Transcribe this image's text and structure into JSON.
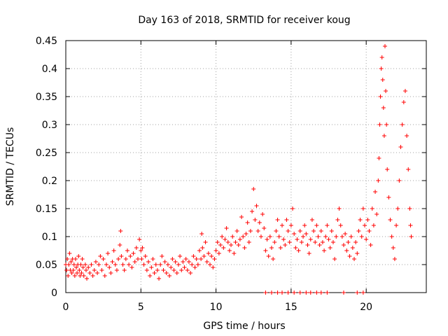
{
  "chart_data": {
    "type": "scatter",
    "title": "Day 163 of 2018, SRMTID for receiver koug",
    "xlabel": "GPS time / hours",
    "ylabel": "SRMTID / TECUs",
    "xlim": [
      0,
      24
    ],
    "ylim": [
      0,
      0.45
    ],
    "grid": true,
    "x_ticks": [
      0,
      5,
      10,
      15,
      20
    ],
    "x_tick_labels": [
      "0",
      "5",
      "10",
      "15",
      "20"
    ],
    "y_ticks": [
      0,
      0.05,
      0.1,
      0.15,
      0.2,
      0.25,
      0.3,
      0.35,
      0.4,
      0.45
    ],
    "y_tick_labels": [
      "0",
      "0.05",
      "0.1",
      "0.15",
      "0.2",
      "0.25",
      "0.3",
      "0.35",
      "0.4",
      "0.45"
    ],
    "marker": "+",
    "series": [
      {
        "name": "SRMTID",
        "color": "#ff0000",
        "points": [
          [
            0.0,
            0.05
          ],
          [
            0.05,
            0.04
          ],
          [
            0.1,
            0.06
          ],
          [
            0.15,
            0.03
          ],
          [
            0.2,
            0.05
          ],
          [
            0.25,
            0.07
          ],
          [
            0.3,
            0.04
          ],
          [
            0.35,
            0.055
          ],
          [
            0.4,
            0.035
          ],
          [
            0.45,
            0.06
          ],
          [
            0.5,
            0.04
          ],
          [
            0.55,
            0.05
          ],
          [
            0.6,
            0.03
          ],
          [
            0.65,
            0.06
          ],
          [
            0.7,
            0.045
          ],
          [
            0.75,
            0.035
          ],
          [
            0.8,
            0.05
          ],
          [
            0.85,
            0.065
          ],
          [
            0.9,
            0.04
          ],
          [
            0.95,
            0.03
          ],
          [
            1.0,
            0.05
          ],
          [
            1.05,
            0.035
          ],
          [
            1.1,
            0.06
          ],
          [
            1.15,
            0.045
          ],
          [
            1.2,
            0.03
          ],
          [
            1.3,
            0.05
          ],
          [
            1.35,
            0.04
          ],
          [
            1.4,
            0.025
          ],
          [
            1.5,
            0.045
          ],
          [
            1.6,
            0.035
          ],
          [
            1.7,
            0.05
          ],
          [
            1.8,
            0.03
          ],
          [
            1.9,
            0.04
          ],
          [
            2.0,
            0.055
          ],
          [
            2.1,
            0.035
          ],
          [
            2.2,
            0.05
          ],
          [
            2.3,
            0.065
          ],
          [
            2.4,
            0.04
          ],
          [
            2.5,
            0.06
          ],
          [
            2.6,
            0.03
          ],
          [
            2.7,
            0.05
          ],
          [
            2.8,
            0.07
          ],
          [
            2.9,
            0.045
          ],
          [
            3.0,
            0.035
          ],
          [
            3.1,
            0.055
          ],
          [
            3.2,
            0.075
          ],
          [
            3.3,
            0.05
          ],
          [
            3.4,
            0.04
          ],
          [
            3.5,
            0.06
          ],
          [
            3.6,
            0.085
          ],
          [
            3.65,
            0.11
          ],
          [
            3.7,
            0.065
          ],
          [
            3.8,
            0.05
          ],
          [
            3.9,
            0.04
          ],
          [
            4.0,
            0.06
          ],
          [
            4.1,
            0.075
          ],
          [
            4.2,
            0.05
          ],
          [
            4.3,
            0.065
          ],
          [
            4.4,
            0.045
          ],
          [
            4.5,
            0.07
          ],
          [
            4.6,
            0.055
          ],
          [
            4.7,
            0.08
          ],
          [
            4.8,
            0.06
          ],
          [
            4.9,
            0.095
          ],
          [
            5.0,
            0.075
          ],
          [
            5.05,
            0.06
          ],
          [
            5.1,
            0.08
          ],
          [
            5.2,
            0.05
          ],
          [
            5.3,
            0.065
          ],
          [
            5.4,
            0.04
          ],
          [
            5.5,
            0.055
          ],
          [
            5.6,
            0.03
          ],
          [
            5.7,
            0.045
          ],
          [
            5.8,
            0.06
          ],
          [
            5.9,
            0.035
          ],
          [
            6.0,
            0.05
          ],
          [
            6.1,
            0.04
          ],
          [
            6.2,
            0.025
          ],
          [
            6.3,
            0.05
          ],
          [
            6.4,
            0.065
          ],
          [
            6.5,
            0.04
          ],
          [
            6.6,
            0.055
          ],
          [
            6.7,
            0.035
          ],
          [
            6.8,
            0.05
          ],
          [
            6.9,
            0.03
          ],
          [
            7.0,
            0.045
          ],
          [
            7.1,
            0.06
          ],
          [
            7.2,
            0.04
          ],
          [
            7.3,
            0.055
          ],
          [
            7.4,
            0.035
          ],
          [
            7.5,
            0.05
          ],
          [
            7.6,
            0.065
          ],
          [
            7.7,
            0.04
          ],
          [
            7.8,
            0.055
          ],
          [
            7.9,
            0.045
          ],
          [
            8.0,
            0.06
          ],
          [
            8.1,
            0.04
          ],
          [
            8.2,
            0.055
          ],
          [
            8.3,
            0.035
          ],
          [
            8.4,
            0.05
          ],
          [
            8.5,
            0.065
          ],
          [
            8.6,
            0.045
          ],
          [
            8.7,
            0.06
          ],
          [
            8.8,
            0.05
          ],
          [
            8.9,
            0.075
          ],
          [
            9.0,
            0.06
          ],
          [
            9.05,
            0.105
          ],
          [
            9.1,
            0.08
          ],
          [
            9.2,
            0.065
          ],
          [
            9.3,
            0.09
          ],
          [
            9.4,
            0.055
          ],
          [
            9.5,
            0.07
          ],
          [
            9.6,
            0.05
          ],
          [
            9.7,
            0.065
          ],
          [
            9.8,
            0.045
          ],
          [
            9.9,
            0.06
          ],
          [
            10.0,
            0.075
          ],
          [
            10.1,
            0.09
          ],
          [
            10.2,
            0.07
          ],
          [
            10.3,
            0.085
          ],
          [
            10.4,
            0.1
          ],
          [
            10.5,
            0.08
          ],
          [
            10.6,
            0.095
          ],
          [
            10.7,
            0.115
          ],
          [
            10.8,
            0.09
          ],
          [
            10.9,
            0.075
          ],
          [
            11.0,
            0.085
          ],
          [
            11.1,
            0.1
          ],
          [
            11.2,
            0.07
          ],
          [
            11.3,
            0.09
          ],
          [
            11.4,
            0.11
          ],
          [
            11.5,
            0.085
          ],
          [
            11.6,
            0.095
          ],
          [
            11.7,
            0.135
          ],
          [
            11.8,
            0.1
          ],
          [
            11.9,
            0.08
          ],
          [
            12.0,
            0.105
          ],
          [
            12.1,
            0.125
          ],
          [
            12.2,
            0.09
          ],
          [
            12.3,
            0.11
          ],
          [
            12.4,
            0.145
          ],
          [
            12.5,
            0.185
          ],
          [
            12.6,
            0.13
          ],
          [
            12.7,
            0.155
          ],
          [
            12.8,
            0.11
          ],
          [
            12.9,
            0.125
          ],
          [
            13.0,
            0.1
          ],
          [
            13.1,
            0.14
          ],
          [
            13.2,
            0.115
          ],
          [
            13.3,
            0.075
          ],
          [
            13.4,
            0.095
          ],
          [
            13.5,
            0.065
          ],
          [
            13.6,
            0.1
          ],
          [
            13.7,
            0.08
          ],
          [
            13.8,
            0.06
          ],
          [
            13.9,
            0.09
          ],
          [
            14.0,
            0.11
          ],
          [
            14.1,
            0.13
          ],
          [
            14.2,
            0.1
          ],
          [
            14.3,
            0.08
          ],
          [
            14.4,
            0.12
          ],
          [
            14.5,
            0.095
          ],
          [
            14.6,
            0.085
          ],
          [
            14.7,
            0.13
          ],
          [
            14.8,
            0.11
          ],
          [
            14.9,
            0.09
          ],
          [
            15.0,
            0.12
          ],
          [
            15.1,
            0.15
          ],
          [
            15.2,
            0.105
          ],
          [
            15.3,
            0.08
          ],
          [
            15.4,
            0.095
          ],
          [
            15.5,
            0.075
          ],
          [
            15.6,
            0.11
          ],
          [
            15.7,
            0.09
          ],
          [
            15.8,
            0.1
          ],
          [
            15.9,
            0.12
          ],
          [
            16.0,
            0.105
          ],
          [
            16.1,
            0.085
          ],
          [
            16.2,
            0.07
          ],
          [
            16.3,
            0.095
          ],
          [
            16.4,
            0.13
          ],
          [
            16.5,
            0.11
          ],
          [
            16.6,
            0.09
          ],
          [
            16.7,
            0.12
          ],
          [
            16.8,
            0.1
          ],
          [
            16.9,
            0.085
          ],
          [
            17.0,
            0.11
          ],
          [
            17.1,
            0.09
          ],
          [
            17.2,
            0.075
          ],
          [
            17.3,
            0.1
          ],
          [
            17.4,
            0.12
          ],
          [
            17.5,
            0.095
          ],
          [
            17.6,
            0.08
          ],
          [
            17.7,
            0.11
          ],
          [
            17.8,
            0.09
          ],
          [
            17.9,
            0.06
          ],
          [
            18.0,
            0.1
          ],
          [
            18.1,
            0.13
          ],
          [
            18.2,
            0.15
          ],
          [
            18.3,
            0.12
          ],
          [
            18.4,
            0.1
          ],
          [
            18.5,
            0.085
          ],
          [
            18.6,
            0.105
          ],
          [
            18.7,
            0.075
          ],
          [
            18.8,
            0.09
          ],
          [
            18.9,
            0.065
          ],
          [
            19.0,
            0.1
          ],
          [
            19.1,
            0.08
          ],
          [
            19.2,
            0.06
          ],
          [
            19.3,
            0.09
          ],
          [
            19.4,
            0.07
          ],
          [
            19.5,
            0.11
          ],
          [
            19.6,
            0.13
          ],
          [
            19.7,
            0.1
          ],
          [
            19.8,
            0.15
          ],
          [
            19.9,
            0.12
          ],
          [
            20.0,
            0.095
          ],
          [
            20.1,
            0.13
          ],
          [
            20.2,
            0.11
          ],
          [
            20.3,
            0.085
          ],
          [
            20.4,
            0.15
          ],
          [
            20.5,
            0.12
          ],
          [
            20.6,
            0.18
          ],
          [
            20.7,
            0.14
          ],
          [
            20.8,
            0.2
          ],
          [
            20.85,
            0.24
          ],
          [
            20.9,
            0.3
          ],
          [
            20.95,
            0.35
          ],
          [
            21.0,
            0.4
          ],
          [
            21.05,
            0.42
          ],
          [
            21.1,
            0.38
          ],
          [
            21.15,
            0.33
          ],
          [
            21.2,
            0.28
          ],
          [
            21.25,
            0.44
          ],
          [
            21.3,
            0.36
          ],
          [
            21.35,
            0.3
          ],
          [
            21.4,
            0.22
          ],
          [
            21.5,
            0.17
          ],
          [
            21.6,
            0.13
          ],
          [
            21.7,
            0.1
          ],
          [
            21.8,
            0.08
          ],
          [
            21.9,
            0.06
          ],
          [
            22.0,
            0.12
          ],
          [
            22.1,
            0.15
          ],
          [
            22.2,
            0.2
          ],
          [
            22.3,
            0.26
          ],
          [
            22.4,
            0.3
          ],
          [
            22.5,
            0.34
          ],
          [
            22.6,
            0.36
          ],
          [
            22.7,
            0.28
          ],
          [
            22.8,
            0.22
          ],
          [
            22.9,
            0.15
          ],
          [
            22.95,
            0.12
          ],
          [
            23.0,
            0.1
          ],
          [
            13.3,
            0.0
          ],
          [
            13.7,
            0.0
          ],
          [
            14.1,
            0.0
          ],
          [
            14.4,
            0.0
          ],
          [
            14.8,
            0.0
          ],
          [
            15.2,
            0.0
          ],
          [
            15.6,
            0.0
          ],
          [
            16.0,
            0.0
          ],
          [
            16.3,
            0.0
          ],
          [
            16.7,
            0.0
          ],
          [
            17.0,
            0.0
          ],
          [
            17.4,
            0.0
          ],
          [
            18.5,
            0.0
          ],
          [
            19.4,
            0.0
          ],
          [
            19.8,
            0.0
          ]
        ]
      }
    ]
  }
}
